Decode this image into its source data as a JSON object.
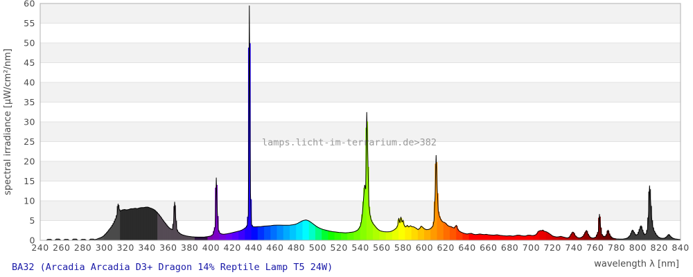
{
  "caption": "BA32 (Arcadia Arcadia D3+ Dragon 14% Reptile Lamp T5 24W)",
  "watermark": "lamps.licht-im-terrarium.de>382",
  "chart_data": {
    "type": "area",
    "title": "",
    "xlabel": "wavelength λ [nm]",
    "ylabel": "spectral irradiance [µW/cm²/nm]",
    "xlim": [
      240,
      840
    ],
    "ylim": [
      0,
      60
    ],
    "x_ticks": [
      240,
      260,
      280,
      300,
      320,
      340,
      360,
      380,
      400,
      420,
      440,
      460,
      480,
      500,
      520,
      540,
      560,
      580,
      600,
      620,
      640,
      660,
      680,
      700,
      720,
      740,
      760,
      780,
      800,
      820,
      840
    ],
    "y_ticks": [
      0,
      5,
      10,
      15,
      20,
      25,
      30,
      35,
      40,
      45,
      50,
      55,
      60
    ],
    "grid": "horizontal gridlines every 5, alternating gray bands",
    "legend": "none",
    "series_name": "spectral irradiance of fluorescent lamp, colored by wavelength",
    "notable_peaks": [
      {
        "nm": 313,
        "value": 9.2
      },
      {
        "nm": 340,
        "value": 8.4
      },
      {
        "nm": 366,
        "value": 9.7
      },
      {
        "nm": 405,
        "value": 15.8
      },
      {
        "nm": 436,
        "value": 59.4
      },
      {
        "nm": 489,
        "value": 5.2
      },
      {
        "nm": 546,
        "value": 32.4
      },
      {
        "nm": 578,
        "value": 5.9
      },
      {
        "nm": 611,
        "value": 21.5
      },
      {
        "nm": 764,
        "value": 6.6
      },
      {
        "nm": 811,
        "value": 13.8
      }
    ],
    "points": [
      [
        240,
        0
      ],
      [
        246,
        0
      ],
      [
        247,
        0.25
      ],
      [
        250,
        0.25
      ],
      [
        251,
        0
      ],
      [
        254,
        0
      ],
      [
        255,
        0.3
      ],
      [
        258,
        0.3
      ],
      [
        259,
        0
      ],
      [
        262,
        0
      ],
      [
        263,
        0.25
      ],
      [
        266,
        0.25
      ],
      [
        267,
        0
      ],
      [
        270,
        0
      ],
      [
        271,
        0.3
      ],
      [
        274,
        0.3
      ],
      [
        275,
        0
      ],
      [
        278,
        0
      ],
      [
        279,
        0.25
      ],
      [
        282,
        0.25
      ],
      [
        283,
        0
      ],
      [
        286,
        0
      ],
      [
        287,
        0.3
      ],
      [
        290,
        0.3
      ],
      [
        291,
        0.15
      ],
      [
        293,
        0.3
      ],
      [
        295,
        0.5
      ],
      [
        297,
        0.7
      ],
      [
        299,
        1.0
      ],
      [
        301,
        1.5
      ],
      [
        303,
        2.1
      ],
      [
        305,
        2.8
      ],
      [
        307,
        3.5
      ],
      [
        309,
        4.4
      ],
      [
        311,
        5.6
      ],
      [
        312,
        6.5
      ],
      [
        313,
        9.2
      ],
      [
        314,
        7.9
      ],
      [
        315,
        7.4
      ],
      [
        317,
        7.7
      ],
      [
        319,
        7.8
      ],
      [
        321,
        7.7
      ],
      [
        323,
        7.8
      ],
      [
        325,
        8.0
      ],
      [
        327,
        8.0
      ],
      [
        329,
        8.1
      ],
      [
        331,
        8.0
      ],
      [
        333,
        8.2
      ],
      [
        335,
        8.3
      ],
      [
        337,
        8.3
      ],
      [
        339,
        8.4
      ],
      [
        341,
        8.4
      ],
      [
        343,
        8.2
      ],
      [
        345,
        8.0
      ],
      [
        347,
        7.7
      ],
      [
        349,
        7.2
      ],
      [
        351,
        6.6
      ],
      [
        353,
        5.9
      ],
      [
        355,
        5.1
      ],
      [
        357,
        4.4
      ],
      [
        359,
        3.7
      ],
      [
        361,
        3.1
      ],
      [
        363,
        2.8
      ],
      [
        364,
        2.7
      ],
      [
        365,
        4.5
      ],
      [
        366,
        9.7
      ],
      [
        367,
        5.5
      ],
      [
        368,
        2.8
      ],
      [
        369,
        2.2
      ],
      [
        371,
        1.7
      ],
      [
        373,
        1.4
      ],
      [
        375,
        1.25
      ],
      [
        377,
        1.1
      ],
      [
        379,
        1.0
      ],
      [
        382,
        0.9
      ],
      [
        385,
        0.85
      ],
      [
        388,
        0.8
      ],
      [
        391,
        0.8
      ],
      [
        394,
        0.85
      ],
      [
        397,
        0.95
      ],
      [
        400,
        1.1
      ],
      [
        402,
        1.5
      ],
      [
        404,
        3.5
      ],
      [
        405,
        15.8
      ],
      [
        406,
        7.0
      ],
      [
        407,
        2.6
      ],
      [
        408,
        1.9
      ],
      [
        410,
        1.6
      ],
      [
        412,
        1.55
      ],
      [
        415,
        1.65
      ],
      [
        418,
        1.8
      ],
      [
        421,
        2.0
      ],
      [
        424,
        2.2
      ],
      [
        427,
        2.4
      ],
      [
        429,
        2.6
      ],
      [
        431,
        2.9
      ],
      [
        433,
        3.3
      ],
      [
        434,
        3.8
      ],
      [
        435,
        6.5
      ],
      [
        436,
        59.4
      ],
      [
        437,
        12.0
      ],
      [
        438,
        4.0
      ],
      [
        439,
        3.5
      ],
      [
        441,
        3.4
      ],
      [
        444,
        3.45
      ],
      [
        447,
        3.5
      ],
      [
        450,
        3.6
      ],
      [
        453,
        3.65
      ],
      [
        456,
        3.7
      ],
      [
        459,
        3.8
      ],
      [
        462,
        3.85
      ],
      [
        465,
        3.85
      ],
      [
        468,
        3.8
      ],
      [
        471,
        3.8
      ],
      [
        474,
        3.85
      ],
      [
        477,
        3.95
      ],
      [
        479,
        4.05
      ],
      [
        481,
        4.25
      ],
      [
        483,
        4.55
      ],
      [
        485,
        4.85
      ],
      [
        487,
        5.05
      ],
      [
        489,
        5.15
      ],
      [
        491,
        5.0
      ],
      [
        493,
        4.7
      ],
      [
        495,
        4.3
      ],
      [
        497,
        3.9
      ],
      [
        499,
        3.5
      ],
      [
        501,
        3.2
      ],
      [
        503,
        2.95
      ],
      [
        505,
        2.75
      ],
      [
        508,
        2.55
      ],
      [
        511,
        2.35
      ],
      [
        514,
        2.2
      ],
      [
        517,
        2.1
      ],
      [
        520,
        2.0
      ],
      [
        523,
        1.95
      ],
      [
        526,
        1.9
      ],
      [
        529,
        1.95
      ],
      [
        532,
        2.05
      ],
      [
        534,
        2.15
      ],
      [
        536,
        2.35
      ],
      [
        538,
        2.7
      ],
      [
        540,
        3.6
      ],
      [
        541,
        4.8
      ],
      [
        542,
        7.0
      ],
      [
        543,
        10.5
      ],
      [
        544,
        14.0
      ],
      [
        545,
        13.0
      ],
      [
        546,
        32.4
      ],
      [
        547,
        21.0
      ],
      [
        548,
        9.0
      ],
      [
        549,
        6.5
      ],
      [
        550,
        5.3
      ],
      [
        551,
        4.7
      ],
      [
        552,
        4.2
      ],
      [
        554,
        3.5
      ],
      [
        556,
        2.9
      ],
      [
        558,
        2.5
      ],
      [
        560,
        2.3
      ],
      [
        562,
        2.2
      ],
      [
        564,
        2.15
      ],
      [
        566,
        2.15
      ],
      [
        568,
        2.2
      ],
      [
        570,
        2.4
      ],
      [
        572,
        2.7
      ],
      [
        574,
        3.2
      ],
      [
        575,
        3.8
      ],
      [
        576,
        5.6
      ],
      [
        577,
        4.4
      ],
      [
        578,
        5.9
      ],
      [
        579,
        4.6
      ],
      [
        580,
        5.1
      ],
      [
        581,
        3.9
      ],
      [
        582,
        3.4
      ],
      [
        583,
        3.5
      ],
      [
        584,
        3.8
      ],
      [
        585,
        3.4
      ],
      [
        586,
        3.5
      ],
      [
        587,
        3.7
      ],
      [
        588,
        3.5
      ],
      [
        590,
        3.4
      ],
      [
        592,
        3.1
      ],
      [
        594,
        2.7
      ],
      [
        596,
        3.1
      ],
      [
        597,
        3.6
      ],
      [
        598,
        3.4
      ],
      [
        600,
        2.9
      ],
      [
        602,
        2.7
      ],
      [
        604,
        2.75
      ],
      [
        606,
        3.0
      ],
      [
        608,
        3.6
      ],
      [
        609,
        5.0
      ],
      [
        610,
        11.0
      ],
      [
        611,
        21.5
      ],
      [
        612,
        13.0
      ],
      [
        613,
        7.5
      ],
      [
        614,
        6.2
      ],
      [
        615,
        5.5
      ],
      [
        616,
        5.0
      ],
      [
        617,
        4.7
      ],
      [
        618,
        4.6
      ],
      [
        619,
        4.5
      ],
      [
        620,
        4.3
      ],
      [
        621,
        4.0
      ],
      [
        622,
        3.7
      ],
      [
        624,
        3.5
      ],
      [
        625,
        3.5
      ],
      [
        626,
        3.3
      ],
      [
        628,
        3.1
      ],
      [
        629,
        3.5
      ],
      [
        630,
        3.8
      ],
      [
        631,
        3.0
      ],
      [
        632,
        2.5
      ],
      [
        634,
        2.1
      ],
      [
        636,
        1.9
      ],
      [
        638,
        1.7
      ],
      [
        640,
        1.6
      ],
      [
        642,
        1.7
      ],
      [
        644,
        1.75
      ],
      [
        646,
        1.55
      ],
      [
        648,
        1.45
      ],
      [
        650,
        1.5
      ],
      [
        652,
        1.6
      ],
      [
        654,
        1.5
      ],
      [
        656,
        1.45
      ],
      [
        658,
        1.5
      ],
      [
        660,
        1.4
      ],
      [
        662,
        1.35
      ],
      [
        665,
        1.3
      ],
      [
        668,
        1.4
      ],
      [
        671,
        1.25
      ],
      [
        674,
        1.15
      ],
      [
        677,
        1.1
      ],
      [
        680,
        1.15
      ],
      [
        683,
        1.05
      ],
      [
        685,
        1.15
      ],
      [
        687,
        1.3
      ],
      [
        689,
        1.3
      ],
      [
        691,
        1.15
      ],
      [
        693,
        1.1
      ],
      [
        695,
        1.1
      ],
      [
        697,
        1.3
      ],
      [
        699,
        1.3
      ],
      [
        701,
        1.2
      ],
      [
        703,
        1.25
      ],
      [
        705,
        1.5
      ],
      [
        707,
        2.3
      ],
      [
        709,
        2.5
      ],
      [
        710,
        2.4
      ],
      [
        711,
        2.6
      ],
      [
        712,
        2.3
      ],
      [
        714,
        2.2
      ],
      [
        716,
        1.9
      ],
      [
        718,
        1.5
      ],
      [
        720,
        1.1
      ],
      [
        722,
        0.95
      ],
      [
        724,
        0.85
      ],
      [
        726,
        0.9
      ],
      [
        728,
        1.0
      ],
      [
        730,
        0.85
      ],
      [
        732,
        0.7
      ],
      [
        734,
        0.6
      ],
      [
        736,
        0.8
      ],
      [
        738,
        1.7
      ],
      [
        739,
        2.1
      ],
      [
        740,
        1.9
      ],
      [
        741,
        1.3
      ],
      [
        743,
        0.75
      ],
      [
        745,
        0.6
      ],
      [
        747,
        0.7
      ],
      [
        749,
        1.1
      ],
      [
        751,
        2.1
      ],
      [
        752,
        2.5
      ],
      [
        753,
        1.7
      ],
      [
        755,
        0.85
      ],
      [
        757,
        0.6
      ],
      [
        759,
        0.6
      ],
      [
        761,
        0.9
      ],
      [
        763,
        2.2
      ],
      [
        764,
        6.6
      ],
      [
        765,
        3.6
      ],
      [
        766,
        1.6
      ],
      [
        768,
        0.9
      ],
      [
        770,
        1.1
      ],
      [
        771,
        1.6
      ],
      [
        772,
        2.6
      ],
      [
        773,
        1.8
      ],
      [
        774,
        1.2
      ],
      [
        776,
        0.6
      ],
      [
        778,
        0.45
      ],
      [
        780,
        0.35
      ],
      [
        783,
        0.3
      ],
      [
        786,
        0.3
      ],
      [
        789,
        0.45
      ],
      [
        791,
        0.7
      ],
      [
        793,
        1.3
      ],
      [
        795,
        2.6
      ],
      [
        796,
        2.2
      ],
      [
        798,
        1.3
      ],
      [
        800,
        1.5
      ],
      [
        802,
        3.0
      ],
      [
        803,
        3.7
      ],
      [
        804,
        2.8
      ],
      [
        806,
        1.4
      ],
      [
        808,
        1.7
      ],
      [
        809,
        2.8
      ],
      [
        810,
        6.5
      ],
      [
        811,
        13.8
      ],
      [
        812,
        9.5
      ],
      [
        813,
        5.5
      ],
      [
        814,
        3.4
      ],
      [
        815,
        2.5
      ],
      [
        817,
        1.5
      ],
      [
        819,
        0.9
      ],
      [
        821,
        0.6
      ],
      [
        823,
        0.5
      ],
      [
        825,
        0.55
      ],
      [
        827,
        0.9
      ],
      [
        829,
        1.5
      ],
      [
        831,
        0.9
      ],
      [
        833,
        0.5
      ],
      [
        835,
        0.35
      ],
      [
        838,
        0.25
      ],
      [
        840,
        0.2
      ]
    ],
    "colors": {
      "uv_below_300": "#515151",
      "uv_300_315": "#4a4a4a",
      "uv_315_350": "#2b2b2b",
      "uv_350_385": "#554b55",
      "uv_385_397": "#2c1240",
      "infrared_above_780": "#3d3d3d",
      "band_gray": "#f2f2f2",
      "grid_line": "#e2e2e2",
      "plot_border": "#b0b0b0",
      "outline": "#000000",
      "axis_text": "#4a4a4a",
      "caption_text": "#1a1aa8",
      "watermark_text": "#9a9a9a"
    }
  }
}
